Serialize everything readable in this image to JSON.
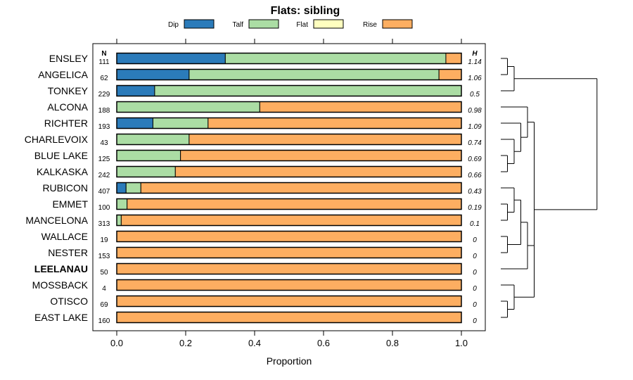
{
  "chart_data": {
    "type": "bar",
    "subtype": "stacked-horizontal-proportion",
    "title": "Flats: sibling",
    "xlabel": "Proportion",
    "xlim": [
      0,
      1
    ],
    "xticks": [
      "0.0",
      "0.2",
      "0.4",
      "0.6",
      "0.8",
      "1.0"
    ],
    "n_header": "N",
    "h_header": "H",
    "series_names": [
      "Dip",
      "Talf",
      "Flat",
      "Rise"
    ],
    "colors": {
      "Dip": "#2b7bba",
      "Talf": "#abdda4",
      "Flat": "#ffffbf",
      "Rise": "#fdae61"
    },
    "rows": [
      {
        "label": "ENSLEY",
        "n": "111",
        "h": "1.14",
        "bold": false,
        "values": [
          0.315,
          0.64,
          0.0,
          0.045
        ]
      },
      {
        "label": "ANGELICA",
        "n": "62",
        "h": "1.06",
        "bold": false,
        "values": [
          0.21,
          0.725,
          0.0,
          0.065
        ]
      },
      {
        "label": "TONKEY",
        "n": "229",
        "h": "0.5",
        "bold": false,
        "values": [
          0.11,
          0.89,
          0.0,
          0.0
        ]
      },
      {
        "label": "ALCONA",
        "n": "188",
        "h": "0.98",
        "bold": false,
        "values": [
          0.0,
          0.415,
          0.0,
          0.585
        ]
      },
      {
        "label": "RICHTER",
        "n": "193",
        "h": "1.09",
        "bold": false,
        "values": [
          0.105,
          0.16,
          0.0,
          0.735
        ]
      },
      {
        "label": "CHARLEVOIX",
        "n": "43",
        "h": "0.74",
        "bold": false,
        "values": [
          0.0,
          0.21,
          0.0,
          0.79
        ]
      },
      {
        "label": "BLUE LAKE",
        "n": "125",
        "h": "0.69",
        "bold": false,
        "values": [
          0.0,
          0.185,
          0.0,
          0.815
        ]
      },
      {
        "label": "KALKASKA",
        "n": "242",
        "h": "0.66",
        "bold": false,
        "values": [
          0.0,
          0.17,
          0.0,
          0.83
        ]
      },
      {
        "label": "RUBICON",
        "n": "407",
        "h": "0.43",
        "bold": false,
        "values": [
          0.027,
          0.043,
          0.0,
          0.93
        ]
      },
      {
        "label": "EMMET",
        "n": "100",
        "h": "0.19",
        "bold": false,
        "values": [
          0.0,
          0.03,
          0.0,
          0.97
        ]
      },
      {
        "label": "MANCELONA",
        "n": "313",
        "h": "0.1",
        "bold": false,
        "values": [
          0.0,
          0.013,
          0.0,
          0.987
        ]
      },
      {
        "label": "WALLACE",
        "n": "19",
        "h": "0",
        "bold": false,
        "values": [
          0.0,
          0.0,
          0.0,
          1.0
        ]
      },
      {
        "label": "NESTER",
        "n": "153",
        "h": "0",
        "bold": false,
        "values": [
          0.0,
          0.0,
          0.0,
          1.0
        ]
      },
      {
        "label": "LEELANAU",
        "n": "50",
        "h": "0",
        "bold": true,
        "values": [
          0.0,
          0.0,
          0.0,
          1.0
        ]
      },
      {
        "label": "MOSSBACK",
        "n": "4",
        "h": "0",
        "bold": false,
        "values": [
          0.0,
          0.0,
          0.0,
          1.0
        ]
      },
      {
        "label": "OTISCO",
        "n": "69",
        "h": "0",
        "bold": false,
        "values": [
          0.0,
          0.0,
          0.0,
          1.0
        ]
      },
      {
        "label": "EAST LAKE",
        "n": "160",
        "h": "0",
        "bold": false,
        "values": [
          0.0,
          0.0,
          0.0,
          1.0
        ]
      }
    ],
    "dendrogram": "[((ENSLEY,ANGELICA),TONKEY),((ALCONA,(RICHTER,(CHARLEVOIX,(BLUE LAKE,KALKASKA)))),(((RUBICON,(EMMET,MANCELONA)),(WALLACE,NESTER)),LEELANAU),(MOSSBACK,(OTISCO,EAST LAKE)))]"
  }
}
